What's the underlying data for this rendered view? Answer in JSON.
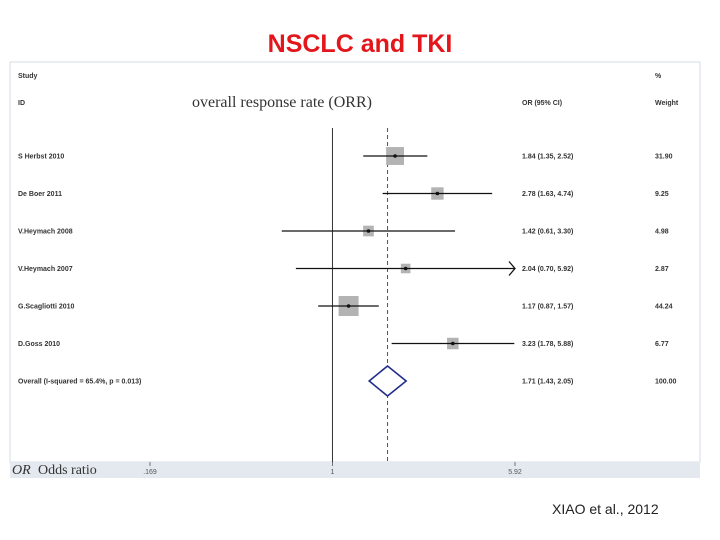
{
  "slide": {
    "title": "NSCLC and TKI",
    "citation": "XIAO et al., 2012"
  },
  "chart_data": {
    "type": "forest",
    "title": "overall response rate (ORR)",
    "header": {
      "study": "Study",
      "id": "ID",
      "or_ci": "OR (95% CI)",
      "pct": "%",
      "weight": "Weight"
    },
    "xlabel_italic": "OR",
    "xlabel": "Odds ratio",
    "x_ticks": [
      ".169",
      "1",
      "5.92"
    ],
    "x_scale": "log",
    "x_range": [
      0.169,
      5.92
    ],
    "reference_line": 1,
    "pooled_line": 1.71,
    "studies": [
      {
        "id": "S Herbst 2010",
        "or": 1.84,
        "lo": 1.35,
        "hi": 2.52,
        "ci_text": "1.84 (1.35, 2.52)",
        "weight": "31.90",
        "w": 31.9
      },
      {
        "id": "De Boer 2011",
        "or": 2.78,
        "lo": 1.63,
        "hi": 4.74,
        "ci_text": "2.78 (1.63, 4.74)",
        "weight": "9.25",
        "w": 9.25
      },
      {
        "id": "V.Heymach 2008",
        "or": 1.42,
        "lo": 0.61,
        "hi": 3.3,
        "ci_text": "1.42 (0.61, 3.30)",
        "weight": "4.98",
        "w": 4.98
      },
      {
        "id": "V.Heymach 2007",
        "or": 2.04,
        "lo": 0.7,
        "hi": 5.92,
        "ci_text": "2.04 (0.70, 5.92)",
        "weight": "2.87",
        "w": 2.87,
        "arrow": true
      },
      {
        "id": "G.Scagliotti 2010",
        "or": 1.17,
        "lo": 0.87,
        "hi": 1.57,
        "ci_text": "1.17 (0.87, 1.57)",
        "weight": "44.24",
        "w": 44.24
      },
      {
        "id": "D.Goss 2010",
        "or": 3.23,
        "lo": 1.78,
        "hi": 5.88,
        "ci_text": "3.23 (1.78, 5.88)",
        "weight": "6.77",
        "w": 6.77
      }
    ],
    "overall": {
      "label": "Overall  (I-squared = 65.4%, p = 0.013)",
      "or": 1.71,
      "lo": 1.43,
      "hi": 2.05,
      "ci_text": "1.71 (1.43, 2.05)",
      "weight": "100.00"
    },
    "colors": {
      "pooled_line": "#c8202b",
      "diamond": "#1f2d8a",
      "box": "#b3b3b3",
      "axis_band": "#e3e9ef",
      "border": "#d5dde5"
    }
  }
}
